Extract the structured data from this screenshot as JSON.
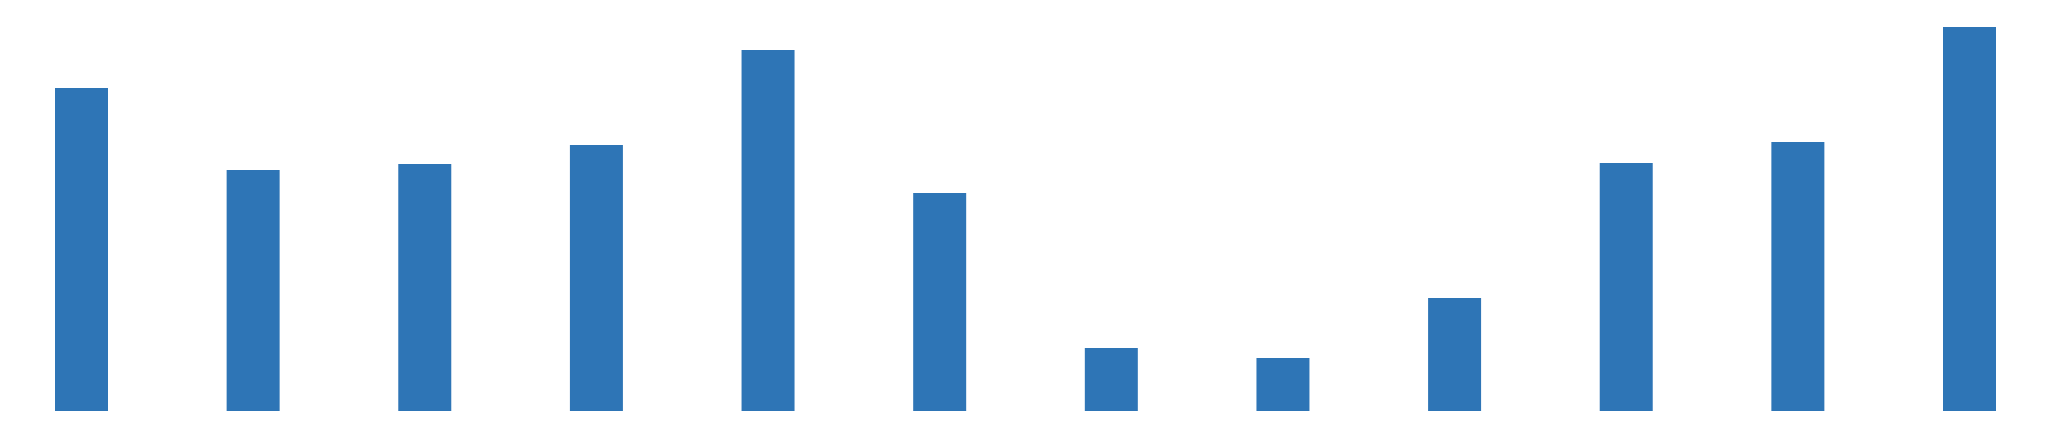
{
  "chart_data": {
    "type": "bar",
    "categories": [
      null,
      null,
      null,
      null,
      null,
      null,
      null,
      null,
      null,
      null,
      null,
      null
    ],
    "values": [
      323,
      241,
      247,
      266,
      361,
      218,
      63,
      53,
      113,
      248,
      269,
      384
    ],
    "color": "#2e75b6",
    "ylim": [
      0,
      400
    ]
  }
}
